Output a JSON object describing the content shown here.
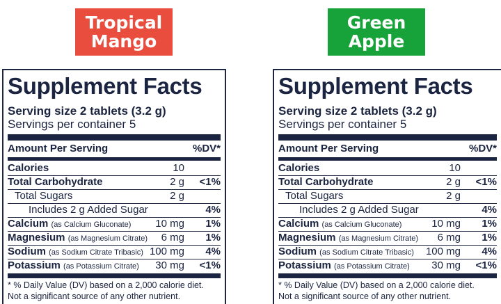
{
  "flavors": [
    {
      "line1": "Tropical",
      "line2": "Mango",
      "color": "#e84d3d"
    },
    {
      "line1": "Green",
      "line2": "Apple",
      "color": "#18a33a"
    }
  ],
  "facts": {
    "title": "Supplement Facts",
    "serving_size": "Serving size 2 tablets (3.2 g)",
    "servings_per_container": "Servings per container 5",
    "amount_header": "Amount Per Serving",
    "dv_header": "%DV*",
    "rows": [
      {
        "name": "Calories",
        "source": "",
        "amount": "10",
        "dv": "",
        "bold": true
      },
      {
        "name": "Total Carbohydrate",
        "source": "",
        "amount": "2 g",
        "dv": "<1%",
        "bold": true
      },
      {
        "name": "Total Sugars",
        "source": "",
        "amount": "2 g",
        "dv": "",
        "bold": false
      },
      {
        "name": "Includes 2 g Added Sugar",
        "source": "",
        "amount": "",
        "dv": "4%",
        "bold": false
      },
      {
        "name": "Calcium",
        "source": "(as Calcium Gluconate)",
        "amount": "10 mg",
        "dv": "1%",
        "bold": true
      },
      {
        "name": "Magnesium",
        "source": "(as Magnesium Citrate)",
        "amount": "6 mg",
        "dv": "1%",
        "bold": true
      },
      {
        "name": "Sodium",
        "source": "(as Sodium Citrate Tribasic)",
        "amount": "100 mg",
        "dv": "4%",
        "bold": true
      },
      {
        "name": "Potassium",
        "source": "(as Potassium Citrate)",
        "amount": "30 mg",
        "dv": "<1%",
        "bold": true
      }
    ],
    "footnote1": "* % Daily Value (DV) based on a 2,000 calorie diet.",
    "footnote2": "Not a significant source of any other nutrient."
  }
}
